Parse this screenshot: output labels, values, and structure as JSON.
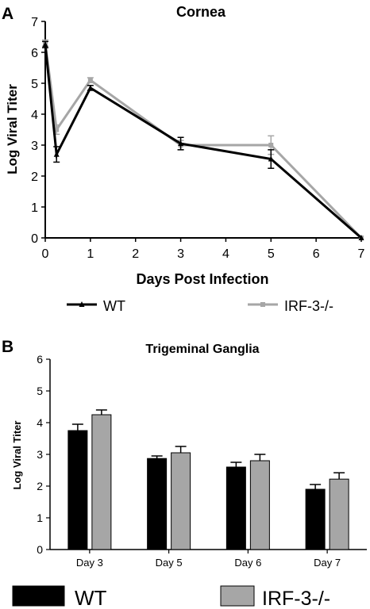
{
  "chart_data": [
    {
      "panel": "A",
      "type": "line",
      "title": "Cornea",
      "xlabel": "Days Post Infection",
      "ylabel": "Log Viral Titer",
      "xlim": [
        0,
        7
      ],
      "ylim": [
        0,
        7
      ],
      "xticks": [
        0,
        1,
        2,
        3,
        4,
        5,
        6,
        7
      ],
      "yticks": [
        0,
        1,
        2,
        3,
        4,
        5,
        6,
        7
      ],
      "legend": "bottom",
      "series": [
        {
          "name": "WT",
          "color": "#000000",
          "marker": "triangle",
          "x": [
            0,
            0.25,
            1,
            3,
            5,
            7
          ],
          "y": [
            6.25,
            2.7,
            4.85,
            3.05,
            2.55,
            0.0
          ],
          "err": [
            0.1,
            0.25,
            0.08,
            0.2,
            0.3,
            0.0
          ]
        },
        {
          "name": "IRF-3-/-",
          "color": "#a6a6a6",
          "marker": "square",
          "x": [
            0,
            0.25,
            1,
            3,
            5,
            7
          ],
          "y": [
            6.3,
            3.5,
            5.1,
            3.0,
            3.0,
            0.0
          ],
          "err": [
            0.1,
            0.15,
            0.08,
            0.15,
            0.3,
            0.0
          ]
        }
      ]
    },
    {
      "panel": "B",
      "type": "bar",
      "title": "Trigeminal Ganglia",
      "xlabel": "",
      "ylabel": "Log Viral Titer",
      "ylim": [
        0,
        6
      ],
      "yticks": [
        0,
        1,
        2,
        3,
        4,
        5,
        6
      ],
      "categories": [
        "Day 3",
        "Day 5",
        "Day 6",
        "Day 7"
      ],
      "legend": "bottom",
      "series": [
        {
          "name": "WT",
          "color": "#000000",
          "values": [
            3.75,
            2.87,
            2.6,
            1.9
          ],
          "err": [
            0.2,
            0.08,
            0.15,
            0.15
          ]
        },
        {
          "name": "IRF-3-/-",
          "color": "#a6a6a6",
          "values": [
            4.25,
            3.05,
            2.8,
            2.22
          ],
          "err": [
            0.15,
            0.2,
            0.2,
            0.2
          ]
        }
      ]
    }
  ]
}
